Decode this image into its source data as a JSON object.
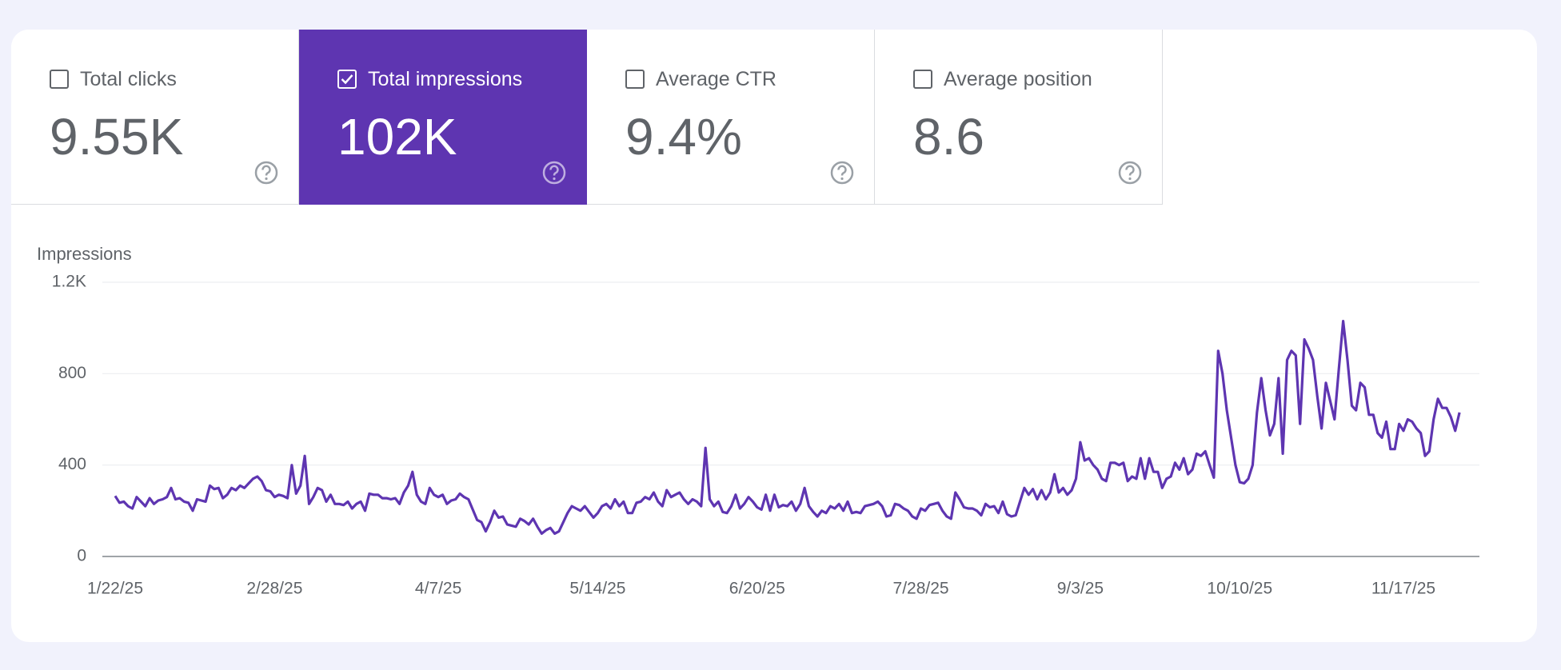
{
  "metrics": [
    {
      "label": "Total clicks",
      "value": "9.55K",
      "selected": false
    },
    {
      "label": "Total impressions",
      "value": "102K",
      "selected": true
    },
    {
      "label": "Average CTR",
      "value": "9.4%",
      "selected": false
    },
    {
      "label": "Average position",
      "value": "8.6",
      "selected": false
    }
  ],
  "chart_data": {
    "type": "line",
    "ylabel": "Impressions",
    "color": "#5e35b1",
    "grid": true,
    "ylim": [
      0,
      1200
    ],
    "yticks": [
      0,
      400,
      800,
      {
        "value": 1200,
        "label": "1.2K"
      }
    ],
    "categories": [
      "1/22/25",
      null,
      null,
      null,
      null,
      null,
      null,
      null,
      null,
      null,
      null,
      null,
      null,
      null,
      null,
      null,
      null,
      null,
      null,
      null,
      null,
      null,
      null,
      null,
      null,
      null,
      null,
      null,
      null,
      null,
      null,
      null,
      null,
      null,
      null,
      null,
      null,
      "2/28/25",
      null,
      null,
      null,
      null,
      null,
      null,
      null,
      null,
      null,
      null,
      null,
      null,
      null,
      null,
      null,
      null,
      null,
      null,
      null,
      null,
      null,
      null,
      null,
      null,
      null,
      null,
      null,
      null,
      null,
      null,
      null,
      null,
      null,
      null,
      null,
      null,
      null,
      "4/7/25",
      null,
      null,
      null,
      null,
      null,
      null,
      null,
      null,
      null,
      null,
      null,
      null,
      null,
      null,
      null,
      null,
      null,
      null,
      null,
      null,
      null,
      null,
      null,
      null,
      null,
      null,
      null,
      null,
      null,
      null,
      null,
      null,
      null,
      null,
      null,
      null,
      "5/14/25",
      null,
      null,
      null,
      null,
      null,
      null,
      null,
      null,
      null,
      null,
      null,
      null,
      null,
      null,
      null,
      null,
      null,
      null,
      null,
      null,
      null,
      null,
      null,
      null,
      null,
      null,
      null,
      null,
      null,
      null,
      null,
      null,
      null,
      null,
      null,
      null,
      "6/20/25",
      null,
      null,
      null,
      null,
      null,
      null,
      null,
      null,
      null,
      null,
      null,
      null,
      null,
      null,
      null,
      null,
      null,
      null,
      null,
      null,
      null,
      null,
      null,
      null,
      null,
      null,
      null,
      null,
      null,
      null,
      null,
      null,
      null,
      null,
      null,
      null,
      null,
      "7/28/25",
      null,
      null,
      null,
      null,
      null,
      null,
      null,
      null,
      null,
      null,
      null,
      null,
      null,
      null,
      null,
      null,
      null,
      null,
      null,
      null,
      null,
      null,
      null,
      null,
      null,
      null,
      null,
      null,
      null,
      null,
      null,
      null,
      null,
      null,
      null,
      null,
      "9/3/25",
      null,
      null,
      null,
      null,
      null,
      null,
      null,
      null,
      null,
      null,
      null,
      null,
      null,
      null,
      null,
      null,
      null,
      null,
      null,
      null,
      null,
      null,
      null,
      null,
      null,
      null,
      null,
      null,
      null,
      null,
      null,
      null,
      null,
      null,
      null,
      null,
      "10/10/25",
      null,
      null,
      null,
      null,
      null,
      null,
      null,
      null,
      null,
      null,
      null,
      null,
      null,
      null,
      null,
      null,
      null,
      null,
      null,
      null,
      null,
      null,
      null,
      null,
      null,
      null,
      null,
      null,
      null,
      null,
      null,
      null,
      null,
      null,
      null,
      null,
      null,
      "11/17/25",
      null,
      null,
      null,
      null,
      null,
      null,
      null,
      null,
      null,
      null,
      null,
      null,
      null
    ],
    "values": [
      265,
      235,
      240,
      220,
      210,
      260,
      240,
      220,
      255,
      230,
      245,
      250,
      260,
      300,
      250,
      255,
      240,
      235,
      200,
      250,
      245,
      240,
      310,
      295,
      300,
      255,
      270,
      300,
      290,
      310,
      300,
      320,
      340,
      350,
      330,
      290,
      285,
      260,
      270,
      265,
      255,
      400,
      275,
      310,
      440,
      230,
      260,
      300,
      290,
      240,
      270,
      230,
      230,
      225,
      240,
      210,
      230,
      240,
      200,
      275,
      270,
      270,
      255,
      255,
      250,
      255,
      230,
      280,
      310,
      370,
      270,
      240,
      230,
      300,
      270,
      260,
      270,
      230,
      245,
      250,
      275,
      260,
      250,
      205,
      160,
      150,
      110,
      150,
      200,
      170,
      175,
      140,
      135,
      130,
      165,
      155,
      140,
      165,
      130,
      100,
      115,
      125,
      100,
      110,
      150,
      190,
      220,
      210,
      200,
      220,
      195,
      170,
      190,
      220,
      230,
      210,
      250,
      220,
      240,
      190,
      190,
      235,
      240,
      260,
      250,
      280,
      240,
      220,
      290,
      260,
      270,
      280,
      250,
      230,
      250,
      240,
      220,
      475,
      250,
      220,
      240,
      195,
      190,
      220,
      270,
      210,
      230,
      260,
      240,
      215,
      205,
      270,
      200,
      270,
      215,
      225,
      220,
      240,
      200,
      230,
      300,
      220,
      195,
      175,
      200,
      190,
      220,
      210,
      230,
      200,
      240,
      190,
      195,
      190,
      220,
      225,
      230,
      240,
      220,
      175,
      180,
      230,
      225,
      210,
      200,
      175,
      165,
      210,
      200,
      225,
      230,
      235,
      200,
      175,
      165,
      280,
      250,
      215,
      210,
      210,
      200,
      180,
      230,
      215,
      220,
      190,
      240,
      185,
      175,
      180,
      240,
      300,
      270,
      295,
      250,
      290,
      250,
      280,
      360,
      280,
      300,
      270,
      290,
      340,
      500,
      420,
      430,
      400,
      380,
      340,
      330,
      410,
      410,
      400,
      410,
      330,
      350,
      340,
      430,
      340,
      430,
      370,
      370,
      300,
      340,
      350,
      410,
      380,
      430,
      360,
      380,
      450,
      440,
      460,
      400,
      345,
      900,
      800,
      640,
      520,
      400,
      325,
      320,
      340,
      400,
      630,
      780,
      640,
      530,
      580,
      780,
      450,
      860,
      900,
      880,
      580,
      950,
      910,
      860,
      700,
      560,
      760,
      680,
      600,
      820,
      1030,
      860,
      660,
      640,
      760,
      740,
      620,
      620,
      540,
      520,
      590,
      470,
      470,
      580,
      550,
      600,
      590,
      560,
      540,
      440,
      460,
      600,
      690,
      650,
      650,
      610,
      550,
      630
    ]
  }
}
